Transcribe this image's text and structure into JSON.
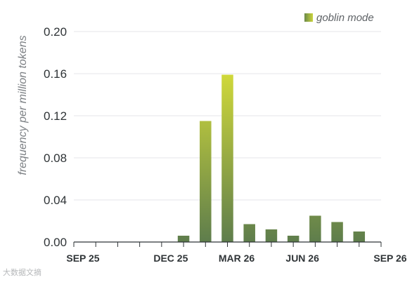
{
  "chart_data": {
    "type": "bar",
    "ylabel": "frequency per million tokens",
    "ylim": [
      0,
      0.2
    ],
    "yticks": [
      0.0,
      0.04,
      0.08,
      0.12,
      0.16,
      0.2
    ],
    "ytick_labels": [
      "0.00",
      "0.04",
      "0.08",
      "0.12",
      "0.16",
      "0.20"
    ],
    "xtick_labels": [
      "SEP 25",
      "DEC 25",
      "MAR 26",
      "JUN 26",
      "SEP 26"
    ],
    "series": [
      {
        "name": "goblin mode",
        "categories": [
          "2025-09",
          "2025-10",
          "2025-11",
          "2025-12",
          "2026-01",
          "2026-02",
          "2026-03",
          "2026-04",
          "2026-05",
          "2026-06",
          "2026-07",
          "2026-08",
          "2026-09"
        ],
        "values": [
          0,
          0,
          0,
          0,
          0.006,
          0.115,
          0.159,
          0.017,
          0.012,
          0.006,
          0.025,
          0.019,
          0.01
        ]
      }
    ],
    "grid": true,
    "legend": "top-right",
    "colors": {
      "bar_bottom": "#5e7d4c",
      "bar_top": "#d2da3a",
      "legend_swatch_left": "#6b8a49",
      "legend_swatch_right": "#c9d33c"
    }
  },
  "watermark": "大数据文摘"
}
